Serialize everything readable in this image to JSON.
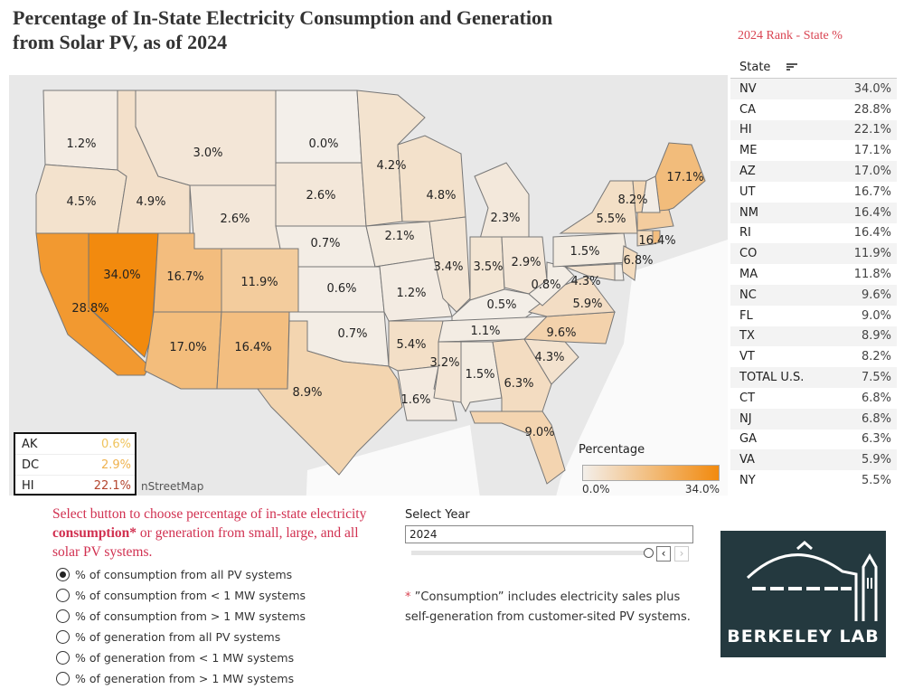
{
  "title_line1": "Percentage of In-State Electricity Consumption and Generation",
  "title_line2": "from Solar PV, as of 2024",
  "rank_title": "2024 Rank - State %",
  "map": {
    "attribution": "nStreetMap",
    "color_min": "#f3efea",
    "color_max": "#f28a0e",
    "range": [
      0,
      34
    ],
    "states": [
      {
        "abbr": "WA",
        "value": 1.2,
        "label": "1.2%"
      },
      {
        "abbr": "OR",
        "value": 4.5,
        "label": "4.5%"
      },
      {
        "abbr": "CA",
        "value": 28.8,
        "label": "28.8%"
      },
      {
        "abbr": "NV",
        "value": 34.0,
        "label": "34.0%"
      },
      {
        "abbr": "ID",
        "value": 4.9,
        "label": "4.9%"
      },
      {
        "abbr": "MT",
        "value": 3.0,
        "label": "3.0%"
      },
      {
        "abbr": "WY",
        "value": 2.6,
        "label": "2.6%"
      },
      {
        "abbr": "UT",
        "value": 16.7,
        "label": "16.7%"
      },
      {
        "abbr": "CO",
        "value": 11.9,
        "label": "11.9%"
      },
      {
        "abbr": "AZ",
        "value": 17.0,
        "label": "17.0%"
      },
      {
        "abbr": "NM",
        "value": 16.4,
        "label": "16.4%"
      },
      {
        "abbr": "ND",
        "value": 0.0,
        "label": "0.0%"
      },
      {
        "abbr": "SD",
        "value": 2.6,
        "label": "2.6%"
      },
      {
        "abbr": "NE",
        "value": 0.7,
        "label": "0.7%"
      },
      {
        "abbr": "KS",
        "value": 0.6,
        "label": "0.6%"
      },
      {
        "abbr": "OK",
        "value": 0.7,
        "label": "0.7%"
      },
      {
        "abbr": "TX",
        "value": 8.9,
        "label": "8.9%"
      },
      {
        "abbr": "MN",
        "value": 4.2,
        "label": "4.2%"
      },
      {
        "abbr": "IA",
        "value": 2.1,
        "label": "2.1%"
      },
      {
        "abbr": "MO",
        "value": 1.2,
        "label": "1.2%"
      },
      {
        "abbr": "AR",
        "value": 5.4,
        "label": "5.4%"
      },
      {
        "abbr": "LA",
        "value": 1.6,
        "label": "1.6%"
      },
      {
        "abbr": "WI",
        "value": 4.8,
        "label": "4.8%"
      },
      {
        "abbr": "MI",
        "value": 2.3,
        "label": "2.3%"
      },
      {
        "abbr": "IL",
        "value": 3.4,
        "label": "3.4%"
      },
      {
        "abbr": "IN",
        "value": 3.5,
        "label": "3.5%"
      },
      {
        "abbr": "OH",
        "value": 2.9,
        "label": "2.9%"
      },
      {
        "abbr": "KY",
        "value": 0.5,
        "label": "0.5%"
      },
      {
        "abbr": "TN",
        "value": 1.1,
        "label": "1.1%"
      },
      {
        "abbr": "MS",
        "value": 3.2,
        "label": "3.2%"
      },
      {
        "abbr": "AL",
        "value": 1.5,
        "label": "1.5%"
      },
      {
        "abbr": "GA",
        "value": 6.3,
        "label": "6.3%"
      },
      {
        "abbr": "FL",
        "value": 9.0,
        "label": "9.0%"
      },
      {
        "abbr": "SC",
        "value": 4.3,
        "label": "4.3%"
      },
      {
        "abbr": "NC",
        "value": 9.6,
        "label": "9.6%"
      },
      {
        "abbr": "VA",
        "value": 5.9,
        "label": "5.9%"
      },
      {
        "abbr": "WV",
        "value": 0.8,
        "label": "0.8%"
      },
      {
        "abbr": "PA",
        "value": 1.5,
        "label": "1.5%"
      },
      {
        "abbr": "NY",
        "value": 5.5,
        "label": "5.5%"
      },
      {
        "abbr": "NJ",
        "value": 6.8,
        "label": "6.8%"
      },
      {
        "abbr": "MD",
        "value": 4.3,
        "label": "4.3%"
      },
      {
        "abbr": "VT",
        "value": 8.2,
        "label": "8.2%"
      },
      {
        "abbr": "ME",
        "value": 17.1,
        "label": "17.1%"
      },
      {
        "abbr": "RI",
        "value": 16.4,
        "label": "16.4%"
      },
      {
        "abbr": "MA",
        "value": 11.8
      },
      {
        "abbr": "CT",
        "value": 6.8
      },
      {
        "abbr": "NH"
      },
      {
        "abbr": "DE"
      }
    ]
  },
  "inset": [
    {
      "state": "AK",
      "value": "0.6%",
      "color": "#efc35c"
    },
    {
      "state": "DC",
      "value": "2.9%",
      "color": "#efb24e"
    },
    {
      "state": "HI",
      "value": "22.1%",
      "color": "#b4452e"
    }
  ],
  "legend": {
    "title": "Percentage",
    "min": "0.0%",
    "max": "34.0%"
  },
  "table": {
    "header": "State",
    "rows": [
      [
        "NV",
        "34.0%"
      ],
      [
        "CA",
        "28.8%"
      ],
      [
        "HI",
        "22.1%"
      ],
      [
        "ME",
        "17.1%"
      ],
      [
        "AZ",
        "17.0%"
      ],
      [
        "UT",
        "16.7%"
      ],
      [
        "NM",
        "16.4%"
      ],
      [
        "RI",
        "16.4%"
      ],
      [
        "CO",
        "11.9%"
      ],
      [
        "MA",
        "11.8%"
      ],
      [
        "NC",
        "9.6%"
      ],
      [
        "FL",
        "9.0%"
      ],
      [
        "TX",
        "8.9%"
      ],
      [
        "VT",
        "8.2%"
      ],
      [
        "TOTAL U.S.",
        "7.5%"
      ],
      [
        "CT",
        "6.8%"
      ],
      [
        "NJ",
        "6.8%"
      ],
      [
        "GA",
        "6.3%"
      ],
      [
        "VA",
        "5.9%"
      ],
      [
        "NY",
        "5.5%"
      ]
    ]
  },
  "instructions": {
    "pre": "Select button to choose percentage of in-state electricity ",
    "bold": "consumption*",
    "post": " or generation from small, large, and all solar PV systems."
  },
  "options": [
    {
      "label": "% of consumption from all PV systems",
      "selected": true
    },
    {
      "label": "% of consumption from < 1 MW systems",
      "selected": false
    },
    {
      "label": "% of consumption from > 1 MW systems",
      "selected": false
    },
    {
      "label": "% of generation from all PV systems",
      "selected": false
    },
    {
      "label": "% of generation from < 1 MW systems",
      "selected": false
    },
    {
      "label": "% of generation from > 1 MW systems",
      "selected": false
    }
  ],
  "year": {
    "label": "Select Year",
    "value": "2024",
    "prev": "‹",
    "next": "›"
  },
  "note": {
    "asterisk": "*",
    "text": " ”Consumption” includes electricity sales plus self-generation from customer-sited PV systems."
  },
  "logo": {
    "text": "BERKELEY LAB"
  }
}
